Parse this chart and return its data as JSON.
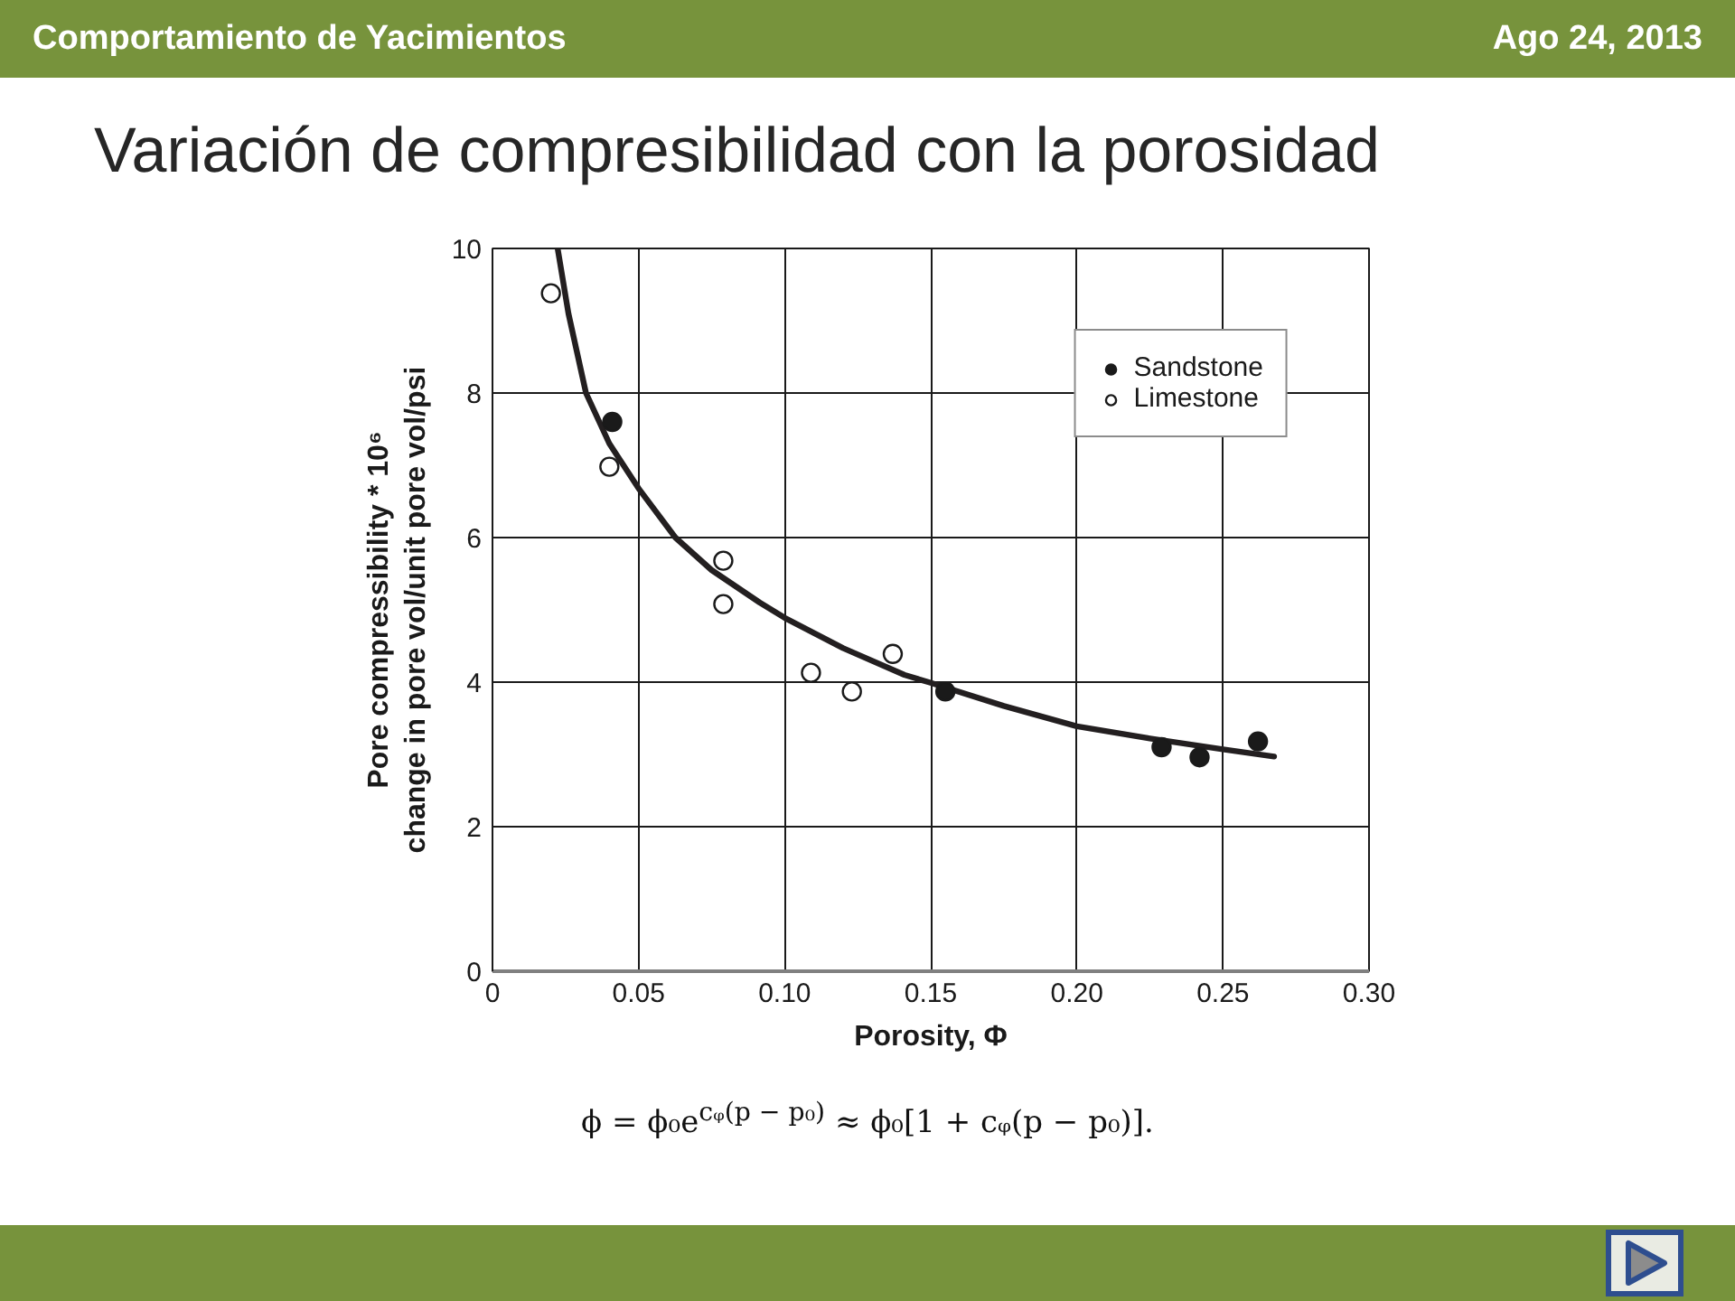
{
  "chart_data": {
    "type": "scatter",
    "title": "Variación de compresibilidad con la porosidad",
    "xlabel": "Porosity, Φ",
    "ylabel": "Pore compressibility * 10⁶\nchange in pore vol/unit pore vol/psi",
    "annotations": [
      "Comportamiento de Yacimientos",
      "Ago 24, 2013",
      "ϕ = ϕ₀e$^{cᵩ(p − p₀)}$ ≈ ϕ₀[1 + cᵩ(p − p₀)]."
    ],
    "xlim": [
      0,
      0.3
    ],
    "ylim": [
      0,
      10
    ],
    "xticks": [
      0,
      0.05,
      {
        "value": 0.1,
        "label": "0.10"
      },
      0.15,
      {
        "value": 0.2,
        "label": "0.20"
      },
      0.25,
      {
        "value": 0.3,
        "label": "0.30"
      }
    ],
    "yticks": [
      0,
      2,
      4,
      6,
      8,
      10
    ],
    "grid": true,
    "legend": "top right",
    "marker": "circle",
    "series": [
      {
        "name": "Sandstone",
        "color": "#1a1a1a",
        "x": [
          0.041,
          0.155,
          0.229,
          0.242,
          0.262
        ],
        "values": [
          7.6,
          3.87,
          3.1,
          2.96,
          3.18
        ]
      },
      {
        "name": "Limestone",
        "color": "#ffffff",
        "x": [
          0.02,
          0.04,
          0.079,
          0.079,
          0.109,
          0.123,
          0.137
        ],
        "values": [
          9.38,
          6.98,
          5.68,
          5.08,
          4.13,
          3.87,
          4.39
        ]
      },
      {
        "type": "line",
        "color": "#231f20",
        "marker": "none",
        "x": [
          0.0223,
          0.026,
          0.032,
          0.04,
          0.05,
          0.0626,
          0.075,
          0.0915,
          0.1,
          0.12,
          0.141,
          0.15,
          0.175,
          0.2,
          0.225,
          0.25,
          0.2675
        ],
        "values": [
          10,
          9.1,
          8.0,
          7.3,
          6.68,
          6.0,
          5.55,
          5.1,
          4.89,
          4.47,
          4.1,
          3.99,
          3.67,
          3.39,
          3.22,
          3.07,
          2.97
        ]
      }
    ]
  }
}
